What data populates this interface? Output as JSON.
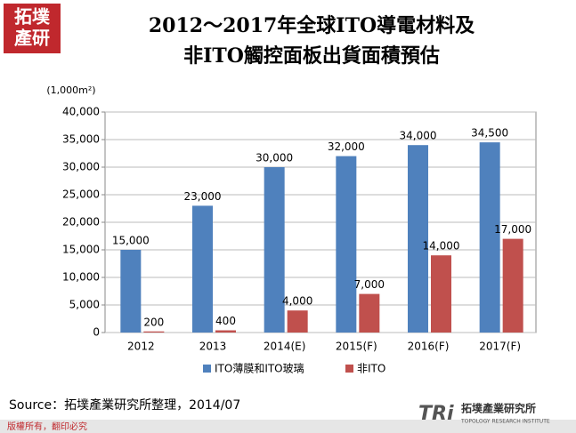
{
  "chart_data": {
    "type": "bar",
    "title": [
      "2012～2017年全球ITO導電材料及",
      "非ITO觸控面板出貨面積預估"
    ],
    "ylabel": "(1,000m²)",
    "categories": [
      "2012",
      "2013",
      "2014(E)",
      "2015(F)",
      "2016(F)",
      "2017(F)"
    ],
    "series": [
      {
        "name": "ITO薄膜和ITO玻璃",
        "color": "#4f81bd",
        "values": [
          15000,
          23000,
          30000,
          32000,
          34000,
          34500
        ],
        "value_labels": [
          "15,000",
          "23,000",
          "30,000",
          "32,000",
          "34,000",
          "34,500"
        ]
      },
      {
        "name": "非ITO",
        "color": "#c0504d",
        "values": [
          200,
          400,
          4000,
          7000,
          14000,
          17000
        ],
        "value_labels": [
          "200",
          "400",
          "4,000",
          "7,000",
          "14,000",
          "17,000"
        ]
      }
    ],
    "ylim": [
      0,
      40000
    ],
    "yticks": [
      0,
      {
        "value": 5000,
        "label": "5,000"
      },
      {
        "value": 10000,
        "label": "10,000"
      },
      {
        "value": 15000,
        "label": "15,000"
      },
      {
        "value": 20000,
        "label": "20,000"
      },
      {
        "value": 25000,
        "label": "25,000"
      },
      {
        "value": 30000,
        "label": "30,000"
      },
      {
        "value": 35000,
        "label": "35,000"
      },
      {
        "value": 40000,
        "label": "40,000"
      }
    ],
    "grid": true,
    "legend": "bottom"
  },
  "source": "Source：拓墣產業研究所整理，2014/07",
  "branding": {
    "logo": [
      "拓墣",
      "產研"
    ],
    "copyright": "版權所有，翻印必究",
    "mark": "TRi",
    "name": "拓墣產業研究所",
    "name_en": "TOPOLOGY RESEARCH INSTITUTE"
  }
}
